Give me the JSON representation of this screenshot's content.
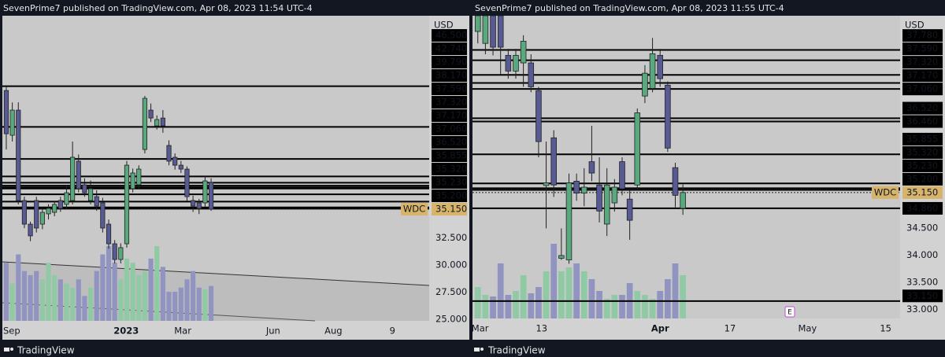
{
  "panels": [
    {
      "header": "SevenPrime7 published on TradingView.com, Apr 08, 2023 11:54 UTC-4",
      "currency": "USD",
      "symbol": "WDC",
      "footer": "TradingView",
      "last_price": {
        "value": 35.15,
        "label": "35.150"
      },
      "ylim": [
        24.85,
        53.0
      ],
      "xlim": [
        -0.65,
        70.2
      ],
      "yticks": [
        {
          "value": 32.5,
          "label": "32.500"
        },
        {
          "value": 30,
          "label": "30.000"
        },
        {
          "value": 27.5,
          "label": "27.500"
        },
        {
          "value": 25,
          "label": "25.000"
        }
      ],
      "levels": [
        {
          "value": 46.5,
          "label": "46.500"
        },
        {
          "value": 42.74,
          "label": "42.740"
        },
        {
          "value": 39.79,
          "label": "39.790"
        },
        {
          "value": 38.17,
          "label": "38.170"
        },
        {
          "value": 37.59,
          "label": "37.590"
        },
        {
          "value": 37.32,
          "label": "37.320"
        },
        {
          "value": 37.17,
          "label": "37.170"
        },
        {
          "value": 37.06,
          "label": "37.060"
        },
        {
          "value": 36.52,
          "label": "36.520"
        },
        {
          "value": 35.855,
          "label": "35.855"
        },
        {
          "value": 35.32,
          "label": "35.320"
        },
        {
          "value": 35.23,
          "label": "35.230"
        },
        {
          "value": 35.2,
          "label": "35.200"
        }
      ],
      "xticks": [
        {
          "value": 0.9,
          "label": "Sep"
        },
        {
          "value": 19.9,
          "label": "2023",
          "bold": true
        },
        {
          "value": 29.3,
          "label": "Mar"
        },
        {
          "value": 44.3,
          "label": "Jun"
        },
        {
          "value": 54.3,
          "label": "Aug"
        },
        {
          "value": 64.1,
          "label": "9"
        }
      ],
      "up_color": "#5aa97e",
      "down_color": "#585a93",
      "up_volume_color": "#8fcaa4",
      "down_volume_color": "#9193c0",
      "candles": {
        "open": [
          46.1,
          41.97,
          44.29,
          35.95,
          33.77,
          35.95,
          33.77,
          34.72,
          34.86,
          35.95,
          35.59,
          35.95,
          39.58,
          37.4,
          35.95,
          36.31,
          35.73,
          33.77,
          31.96,
          30.51,
          31.96,
          37.04,
          37.4,
          40.66,
          44.29,
          42.84,
          43.56,
          41.03,
          39.94,
          39.21,
          38.85,
          35.95,
          35.73,
          35.73,
          37.62
        ],
        "high": [
          46.47,
          45.0,
          45.01,
          36.3,
          34.0,
          36.3,
          35.3,
          35.6,
          35.9,
          36.3,
          37.4,
          41.39,
          40.2,
          38.0,
          37.8,
          36.9,
          36.2,
          34.2,
          32.3,
          32.0,
          39.6,
          38.9,
          39.2,
          45.6,
          44.9,
          43.8,
          44.3,
          41.5,
          40.3,
          39.6,
          39.1,
          36.4,
          36.1,
          38.2,
          38.0
        ],
        "low": [
          40.66,
          41.4,
          35.59,
          33.4,
          32.2,
          33.0,
          33.3,
          34.2,
          34.5,
          34.9,
          35.2,
          35.59,
          36.7,
          36.3,
          35.6,
          35.0,
          33.0,
          31.5,
          30.15,
          30.15,
          31.6,
          36.7,
          37.0,
          40.3,
          43.2,
          42.5,
          42.2,
          39.2,
          38.8,
          38.5,
          35.9,
          34.9,
          34.7,
          35.4,
          35.0
        ],
        "close": [
          42.11,
          44.29,
          35.95,
          33.77,
          32.69,
          33.41,
          34.86,
          35.22,
          35.59,
          35.22,
          36.67,
          39.94,
          37.04,
          36.67,
          37.04,
          35.44,
          33.41,
          31.96,
          30.51,
          31.6,
          39.21,
          38.49,
          38.85,
          45.38,
          43.56,
          43.42,
          42.84,
          39.58,
          39.21,
          38.85,
          36.31,
          35.44,
          35.22,
          37.76,
          35.15
        ]
      },
      "volume": [
        70,
        45,
        80,
        60,
        55,
        60,
        50,
        70,
        55,
        50,
        45,
        40,
        50,
        30,
        40,
        60,
        80,
        90,
        70,
        50,
        75,
        70,
        55,
        60,
        75,
        90,
        65,
        35,
        35,
        40,
        50,
        60,
        40,
        38,
        42
      ]
    },
    {
      "header": "SevenPrime7 published on TradingView.com, Apr 08, 2023 11:55 UTC-4",
      "currency": "USD",
      "symbol": "WDC",
      "footer": "TradingView",
      "earnings_marker": "E",
      "last_price": {
        "value": 35.15,
        "label": "35.150"
      },
      "ylim": [
        32.83,
        38.41
      ],
      "xlim": [
        -0.7,
        55.6
      ],
      "yticks": [
        {
          "value": 34.5,
          "label": "34.500"
        },
        {
          "value": 34,
          "label": "34.000"
        },
        {
          "value": 33.5,
          "label": "33.500"
        },
        {
          "value": 33,
          "label": "33.000"
        }
      ],
      "levels": [
        {
          "value": 37.78,
          "label": "37.780"
        },
        {
          "value": 37.59,
          "label": "37.590"
        },
        {
          "value": 37.32,
          "label": "37.320"
        },
        {
          "value": 37.17,
          "label": "37.170"
        },
        {
          "value": 37.06,
          "label": "37.060"
        },
        {
          "value": 36.52,
          "label": "36.520"
        },
        {
          "value": 36.46,
          "label": "36.460"
        },
        {
          "value": 35.855,
          "label": "35.855"
        },
        {
          "value": 35.32,
          "label": "35.320"
        },
        {
          "value": 35.23,
          "label": "35.230"
        },
        {
          "value": 35.2,
          "label": "35.200"
        },
        {
          "value": 34.86,
          "label": "34.860"
        },
        {
          "value": 33.15,
          "label": "33.150"
        }
      ],
      "xticks": [
        {
          "value": 0.3,
          "label": "Mar"
        },
        {
          "value": 8.4,
          "label": "13"
        },
        {
          "value": 24,
          "label": "Apr",
          "bold": true
        },
        {
          "value": 33.2,
          "label": "17"
        },
        {
          "value": 43.4,
          "label": "May"
        },
        {
          "value": 53.7,
          "label": "15"
        }
      ],
      "up_color": "#5aa97e",
      "down_color": "#585a93",
      "up_volume_color": "#8fcaa4",
      "down_volume_color": "#9193c0",
      "candles": {
        "open": [
          38.12,
          37.9,
          38.41,
          38.41,
          37.68,
          37.39,
          37.54,
          37.54,
          37.03,
          35.28,
          36.16,
          33.94,
          33.91,
          35.36,
          35.14,
          35.72,
          35.29,
          34.57,
          34.96,
          35.72,
          35.03,
          35.29,
          36.93,
          37.07,
          37.68,
          37.13,
          35.61,
          34.86
        ],
        "high": [
          38.41,
          38.41,
          38.41,
          38.41,
          37.8,
          37.8,
          38.05,
          37.7,
          37.1,
          36.09,
          36.3,
          34.49,
          35.5,
          35.5,
          35.6,
          36.38,
          35.8,
          35.6,
          35.4,
          35.8,
          35.2,
          36.7,
          37.5,
          38.0,
          37.8,
          37.2,
          35.7,
          35.3
        ],
        "low": [
          37.9,
          37.7,
          37.68,
          37.32,
          37.25,
          37.25,
          37.1,
          37.0,
          35.8,
          34.49,
          35.07,
          33.91,
          33.84,
          35.0,
          34.9,
          35.36,
          34.6,
          34.35,
          34.8,
          35.1,
          34.28,
          35.2,
          36.8,
          37.0,
          37.1,
          35.9,
          34.88,
          34.74
        ],
        "close": [
          38.41,
          38.41,
          37.83,
          37.83,
          37.39,
          37.68,
          37.94,
          37.1,
          36.09,
          35.33,
          35.29,
          33.99,
          35.33,
          35.14,
          35.25,
          35.51,
          34.81,
          35.29,
          35.25,
          35.22,
          34.64,
          36.62,
          37.35,
          37.71,
          37.25,
          35.97,
          35.1,
          35.15
        ]
      },
      "volume": [
        40,
        30,
        28,
        70,
        30,
        35,
        55,
        32,
        40,
        60,
        95,
        60,
        65,
        70,
        60,
        50,
        35,
        25,
        30,
        30,
        45,
        35,
        30,
        25,
        35,
        50,
        70,
        55
      ]
    }
  ]
}
